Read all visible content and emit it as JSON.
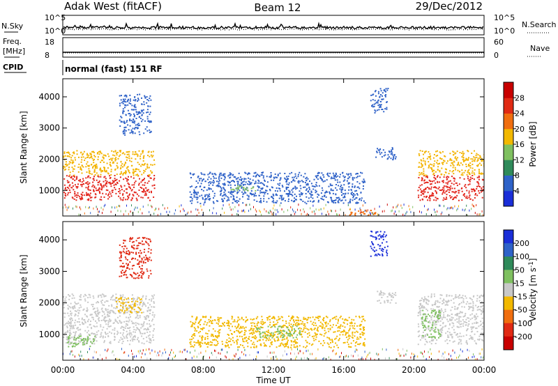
{
  "header": {
    "station": "Adak West (fitACF)",
    "beam": "Beam 12",
    "date": "29/Dec/2012"
  },
  "side_labels": {
    "nsky": "N.Sky",
    "freq_line1": "Freq.",
    "freq_line2": "[MHz]",
    "cpid": "CPID",
    "nsearch": "N.Search",
    "nave": "Nave"
  },
  "cpid_text": "normal (fast) 151 RF",
  "chart_data": [
    {
      "type": "line",
      "name": "nsky-nsearch",
      "left_ticks": [
        "10^5",
        "10^0"
      ],
      "right_ticks": [
        "10^5",
        "10^0"
      ],
      "values": [
        {
          "time_hr": 0,
          "level": 0.25
        },
        {
          "time_hr": 6,
          "level": 0.28
        },
        {
          "time_hr": 12,
          "level": 0.27
        },
        {
          "time_hr": 18,
          "level": 0.3
        },
        {
          "time_hr": 24,
          "level": 0.28
        }
      ]
    },
    {
      "type": "line",
      "name": "freq-nave",
      "left_ticks": [
        "18",
        "8"
      ],
      "right_ticks": [
        "60",
        "0"
      ],
      "freq_mhz": 10.5,
      "nave_value": 13
    },
    {
      "type": "heatmap",
      "name": "power",
      "ylabel": "Slant Range [km]",
      "yticks": [
        "1000",
        "2000",
        "3000",
        "4000"
      ],
      "ylim_km": [
        180,
        4580
      ],
      "xlim_hr": [
        0,
        24
      ],
      "colorbar": {
        "label": "Power [dB]",
        "ticks": [
          "4",
          "8",
          "12",
          "16",
          "20",
          "24",
          "28"
        ],
        "colors": [
          "#1a2ed8",
          "#2e62c8",
          "#2f8a5a",
          "#7fc060",
          "#f2b800",
          "#f06e0f",
          "#e02a14",
          "#c80000"
        ]
      },
      "regions": [
        {
          "t0": 0.0,
          "t1": 5.2,
          "r0": 700,
          "r1": 1500,
          "color": "#e3261d"
        },
        {
          "t0": 0.0,
          "t1": 5.2,
          "r0": 1500,
          "r1": 2300,
          "color": "#f3b300"
        },
        {
          "t0": 3.2,
          "t1": 5.0,
          "r0": 2800,
          "r1": 4100,
          "color": "#2f62c8"
        },
        {
          "t0": 7.2,
          "t1": 17.2,
          "r0": 600,
          "r1": 1600,
          "color": "#2f62c8"
        },
        {
          "t0": 9.5,
          "t1": 11.0,
          "r0": 1000,
          "r1": 1200,
          "color": "#7fc060"
        },
        {
          "t0": 17.5,
          "t1": 18.5,
          "r0": 3500,
          "r1": 4300,
          "color": "#2f62c8"
        },
        {
          "t0": 17.8,
          "t1": 19.0,
          "r0": 2000,
          "r1": 2400,
          "color": "#2f62c8"
        },
        {
          "t0": 20.2,
          "t1": 24.0,
          "r0": 700,
          "r1": 1500,
          "color": "#e3261d"
        },
        {
          "t0": 20.2,
          "t1": 24.0,
          "r0": 1500,
          "r1": 2300,
          "color": "#f3b300"
        },
        {
          "t0": 16.3,
          "t1": 17.8,
          "r0": 200,
          "r1": 420,
          "color": "#f06e0f"
        }
      ]
    },
    {
      "type": "heatmap",
      "name": "velocity",
      "ylabel": "Slant Range [km]",
      "yticks": [
        "1000",
        "2000",
        "3000",
        "4000"
      ],
      "ylim_km": [
        180,
        4580
      ],
      "xlim_hr": [
        0,
        24
      ],
      "xticks": [
        "00:00",
        "04:00",
        "08:00",
        "12:00",
        "16:00",
        "20:00",
        "00:00"
      ],
      "xlabel": "Time UT",
      "colorbar": {
        "label_main": "Velocity [m s",
        "label_sup": "-1",
        "label_end": "]",
        "ticks": [
          "200",
          "100",
          "50",
          "15",
          "-15",
          "-50",
          "-100",
          "-200"
        ],
        "colors": [
          "#1a2ed8",
          "#2e62c8",
          "#2f8a5a",
          "#7fc060",
          "#c8c8c8",
          "#f2b800",
          "#f06e0f",
          "#e02a14",
          "#c80000"
        ]
      },
      "regions": [
        {
          "t0": 0.0,
          "t1": 5.2,
          "r0": 700,
          "r1": 1600,
          "color": "#c8c8c8"
        },
        {
          "t0": 0.0,
          "t1": 5.2,
          "r0": 1600,
          "r1": 2300,
          "color": "#c8c8c8"
        },
        {
          "t0": 0.2,
          "t1": 1.8,
          "r0": 600,
          "r1": 1000,
          "color": "#7fc060"
        },
        {
          "t0": 3.0,
          "t1": 4.5,
          "r0": 1700,
          "r1": 2200,
          "color": "#f2b800"
        },
        {
          "t0": 3.2,
          "t1": 5.0,
          "r0": 2800,
          "r1": 4100,
          "color": "#e02a14"
        },
        {
          "t0": 7.2,
          "t1": 17.2,
          "r0": 600,
          "r1": 1600,
          "color": "#f2b800"
        },
        {
          "t0": 11.0,
          "t1": 13.5,
          "r0": 900,
          "r1": 1300,
          "color": "#7fc060"
        },
        {
          "t0": 17.5,
          "t1": 18.5,
          "r0": 3500,
          "r1": 4300,
          "color": "#1a2ed8"
        },
        {
          "t0": 17.8,
          "t1": 19.0,
          "r0": 2000,
          "r1": 2400,
          "color": "#c8c8c8"
        },
        {
          "t0": 20.2,
          "t1": 24.0,
          "r0": 700,
          "r1": 2300,
          "color": "#c8c8c8"
        },
        {
          "t0": 20.4,
          "t1": 21.5,
          "r0": 900,
          "r1": 1800,
          "color": "#7fc060"
        }
      ]
    }
  ]
}
